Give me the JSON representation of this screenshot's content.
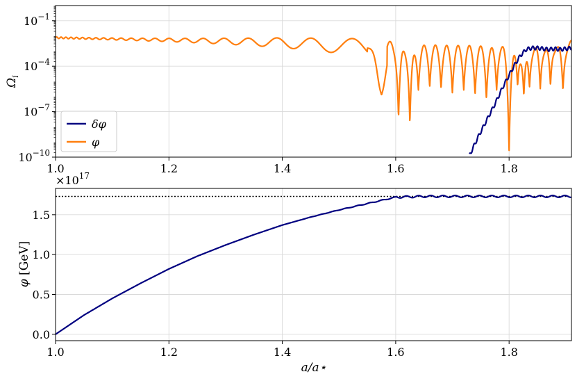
{
  "chart_data": [
    {
      "type": "line",
      "panel": "top",
      "ylabel": "Ω_i",
      "xlabel": "",
      "yscale": "log",
      "xlim": [
        1.0,
        1.91
      ],
      "ylim": [
        1e-10,
        1.0
      ],
      "xticks": [
        {
          "value": 1.0,
          "label": "1.0"
        },
        {
          "value": 1.2,
          "label": "1.2"
        },
        {
          "value": 1.4,
          "label": "1.4"
        },
        {
          "value": 1.6,
          "label": "1.6"
        },
        {
          "value": 1.8,
          "label": "1.8"
        }
      ],
      "yticks": [
        {
          "value": -10,
          "base": "10",
          "exp": "−10"
        },
        {
          "value": -7,
          "base": "10",
          "exp": "−7"
        },
        {
          "value": -4,
          "base": "10",
          "exp": "−4"
        },
        {
          "value": -1,
          "base": "10",
          "exp": "−1"
        }
      ],
      "grid": true,
      "legend": {
        "placement": "lower-left"
      },
      "series": [
        {
          "name": "δφ",
          "color": "#000080",
          "x": [
            1.73,
            1.745,
            1.76,
            1.775,
            1.79,
            1.8,
            1.81,
            1.82,
            1.83,
            1.84,
            1.85,
            1.86,
            1.87,
            1.88,
            1.89,
            1.9,
            1.91
          ],
          "log10y": [
            -9.9,
            -8.7,
            -7.6,
            -6.5,
            -5.3,
            -4.6,
            -3.9,
            -3.3,
            -2.9,
            -2.8,
            -2.8,
            -2.85,
            -2.9,
            -2.85,
            -2.9,
            -2.85,
            -2.8
          ]
        },
        {
          "name": "φ",
          "color": "#ff7f0e",
          "x": [
            1.0,
            1.1,
            1.2,
            1.3,
            1.4,
            1.45,
            1.5,
            1.55,
            1.6,
            1.65,
            1.7,
            1.75,
            1.8,
            1.85,
            1.91
          ],
          "log10y_mean": [
            -2.12,
            -2.2,
            -2.27,
            -2.35,
            -2.45,
            -2.55,
            -2.65,
            -2.8,
            -2.5,
            -2.5,
            -2.5,
            -2.5,
            -2.5,
            -2.5,
            -2.5
          ]
        }
      ]
    },
    {
      "type": "line",
      "panel": "bottom",
      "ylabel": "φ [GeV]",
      "xlabel": "a/a⋆",
      "xlim": [
        1.0,
        1.91
      ],
      "ylim": [
        -0.08,
        1.83
      ],
      "offset_text": {
        "base": "×10",
        "exp": "17"
      },
      "xticks": [
        {
          "value": 1.0,
          "label": "1.0"
        },
        {
          "value": 1.2,
          "label": "1.2"
        },
        {
          "value": 1.4,
          "label": "1.4"
        },
        {
          "value": 1.6,
          "label": "1.6"
        },
        {
          "value": 1.8,
          "label": "1.8"
        }
      ],
      "yticks": [
        {
          "value": 0.0,
          "label": "0.0"
        },
        {
          "value": 0.5,
          "label": "0.5"
        },
        {
          "value": 1.0,
          "label": "1.0"
        },
        {
          "value": 1.5,
          "label": "1.5"
        }
      ],
      "grid": true,
      "reference_line_y": 1.73,
      "series": [
        {
          "name": "φ",
          "color": "#000080",
          "x": [
            1.0,
            1.05,
            1.1,
            1.15,
            1.2,
            1.25,
            1.3,
            1.35,
            1.4,
            1.45,
            1.5,
            1.55,
            1.6,
            1.65,
            1.7,
            1.75,
            1.8,
            1.85,
            1.91
          ],
          "y": [
            0.0,
            0.24,
            0.45,
            0.64,
            0.82,
            0.98,
            1.12,
            1.25,
            1.37,
            1.47,
            1.56,
            1.64,
            1.72,
            1.73,
            1.73,
            1.73,
            1.73,
            1.73,
            1.73
          ]
        }
      ]
    }
  ]
}
